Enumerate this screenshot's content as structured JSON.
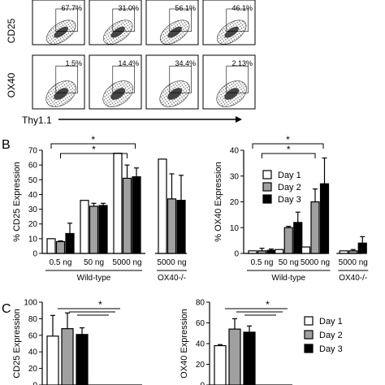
{
  "flow": {
    "row_labels": [
      "CD25",
      "OX40"
    ],
    "x_axis_label": "Thy1.1",
    "top_row_percents": [
      "67.7%",
      "31.0%",
      "56.1%",
      "46.1%"
    ],
    "bottom_row_percents": [
      "1.5%",
      "14.4%",
      "34.4%",
      "2.13%"
    ]
  },
  "panels": {
    "b": "B",
    "c": "C"
  },
  "chart_data": [
    {
      "type": "bar",
      "title": "",
      "ylabel": "% CD25 Expression",
      "ylim": [
        0,
        70
      ],
      "yticks": [
        "0",
        "10",
        "20",
        "30",
        "40",
        "50",
        "60",
        "70"
      ],
      "categories": [
        "0.5 ng",
        "50 ng",
        "5000 ng",
        "5000 ng"
      ],
      "group_labels": [
        "Wild-type",
        "OX40-/-"
      ],
      "series": [
        {
          "name": "Day 1",
          "values": [
            10,
            36,
            68,
            64
          ],
          "errors": [
            0,
            0,
            0,
            0
          ],
          "color": "#ffffff"
        },
        {
          "name": "Day 2",
          "values": [
            8,
            32,
            51,
            37
          ],
          "errors": [
            0.5,
            2,
            9,
            17
          ],
          "color": "#a0a0a0"
        },
        {
          "name": "Day 3",
          "values": [
            13.5,
            32.5,
            52,
            36
          ],
          "errors": [
            7,
            1.5,
            6,
            17
          ],
          "color": "#000000"
        }
      ],
      "significance": [
        "*",
        "*"
      ]
    },
    {
      "type": "bar",
      "title": "",
      "ylabel": "% OX40 Expression",
      "ylim": [
        0,
        40
      ],
      "yticks": [
        "0",
        "10",
        "20",
        "30",
        "40"
      ],
      "categories": [
        "0.5 ng",
        "50 ng",
        "5000 ng",
        "5000 ng"
      ],
      "group_labels": [
        "Wild-type",
        "OX40-/-"
      ],
      "series": [
        {
          "name": "Day 1",
          "values": [
            1,
            1.5,
            2.5,
            1
          ],
          "errors": [
            0,
            0,
            0,
            0
          ],
          "color": "#ffffff"
        },
        {
          "name": "Day 2",
          "values": [
            1,
            10,
            20,
            1
          ],
          "errors": [
            1,
            0.5,
            5,
            0.5
          ],
          "color": "#a0a0a0"
        },
        {
          "name": "Day 3",
          "values": [
            1.2,
            12,
            27,
            4
          ],
          "errors": [
            0.5,
            4,
            10,
            2.5
          ],
          "color": "#000000"
        }
      ],
      "legend": [
        "Day 1",
        "Day 2",
        "Day 3"
      ],
      "significance": [
        "*",
        "*"
      ]
    },
    {
      "type": "bar",
      "title": "",
      "ylabel": "CD25 Expression",
      "ylim": [
        0,
        100
      ],
      "yticks": [
        "0",
        "20",
        "40",
        "60",
        "80",
        "100"
      ],
      "series": [
        {
          "name": "Day 1",
          "values": [
            59
          ],
          "errors": [
            25
          ],
          "color": "#ffffff"
        },
        {
          "name": "Day 2",
          "values": [
            68
          ],
          "errors": [
            19
          ],
          "color": "#a0a0a0"
        },
        {
          "name": "Day 3",
          "values": [
            61
          ],
          "errors": [
            8
          ],
          "color": "#000000"
        }
      ],
      "significance": [
        "*"
      ]
    },
    {
      "type": "bar",
      "title": "",
      "ylabel": "OX40 Expression",
      "ylim": [
        0,
        80
      ],
      "yticks": [
        "0",
        "20",
        "40",
        "60",
        "80"
      ],
      "series": [
        {
          "name": "Day 1",
          "values": [
            38
          ],
          "errors": [
            1
          ],
          "color": "#ffffff"
        },
        {
          "name": "Day 2",
          "values": [
            54
          ],
          "errors": [
            10
          ],
          "color": "#a0a0a0"
        },
        {
          "name": "Day 3",
          "values": [
            51
          ],
          "errors": [
            6
          ],
          "color": "#000000"
        }
      ],
      "legend": [
        "Day 1",
        "Day 2",
        "Day 3"
      ],
      "significance": [
        "*"
      ]
    }
  ]
}
